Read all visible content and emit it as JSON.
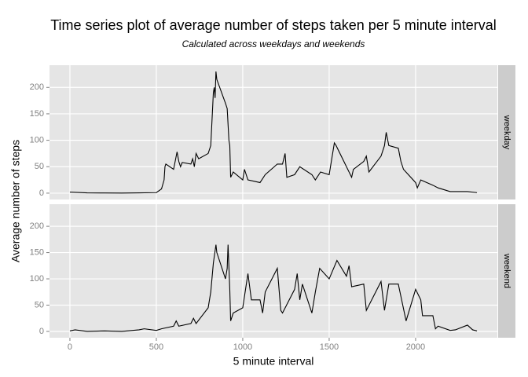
{
  "chart_data": {
    "type": "line",
    "title": "Time series plot of average number of steps taken per 5 minute interval",
    "subtitle": "Calculated across weekdays and weekends",
    "x_label": "5 minute interval",
    "y_label": "Average number of steps",
    "xlim": [
      -118,
      2473
    ],
    "xticks": [
      0,
      500,
      1000,
      1500,
      2000
    ],
    "ylim": [
      -12,
      242
    ],
    "yticks": [
      0,
      50,
      100,
      150,
      200
    ],
    "grid": true,
    "series": [
      {
        "name": "weekday",
        "color": "#000000",
        "x": [
          0,
          100,
          200,
          300,
          400,
          500,
          530,
          545,
          550,
          555,
          600,
          615,
          620,
          630,
          640,
          650,
          700,
          710,
          720,
          730,
          745,
          800,
          815,
          830,
          835,
          840,
          845,
          850,
          900,
          910,
          920,
          925,
          930,
          945,
          1000,
          1010,
          1030,
          1100,
          1130,
          1200,
          1230,
          1245,
          1255,
          1300,
          1330,
          1400,
          1420,
          1450,
          1500,
          1530,
          1540,
          1600,
          1630,
          1640,
          1700,
          1715,
          1730,
          1800,
          1820,
          1830,
          1845,
          1900,
          1915,
          1930,
          2000,
          2010,
          2030,
          2100,
          2130,
          2200,
          2300,
          2355
        ],
        "values": [
          2,
          0.5,
          0.3,
          0.2,
          0.5,
          1,
          8,
          25,
          50,
          55,
          45,
          70,
          78,
          60,
          50,
          58,
          55,
          65,
          50,
          75,
          65,
          75,
          90,
          190,
          200,
          180,
          230,
          215,
          170,
          160,
          100,
          90,
          30,
          40,
          25,
          45,
          25,
          20,
          35,
          55,
          55,
          75,
          30,
          35,
          50,
          35,
          25,
          40,
          35,
          95,
          90,
          50,
          30,
          45,
          60,
          70,
          40,
          70,
          90,
          115,
          90,
          85,
          60,
          45,
          20,
          10,
          25,
          15,
          10,
          3,
          3,
          1
        ]
      },
      {
        "name": "weekend",
        "color": "#000000",
        "x": [
          0,
          30,
          100,
          200,
          300,
          400,
          430,
          500,
          530,
          600,
          615,
          630,
          700,
          715,
          730,
          800,
          815,
          830,
          845,
          850,
          900,
          910,
          915,
          925,
          930,
          945,
          1000,
          1030,
          1050,
          1100,
          1115,
          1130,
          1200,
          1220,
          1230,
          1300,
          1315,
          1330,
          1345,
          1400,
          1420,
          1445,
          1500,
          1545,
          1600,
          1615,
          1630,
          1700,
          1715,
          1800,
          1820,
          1845,
          1900,
          1945,
          2000,
          2030,
          2040,
          2100,
          2115,
          2130,
          2200,
          2230,
          2300,
          2330,
          2355
        ],
        "values": [
          1,
          3,
          0,
          1,
          0,
          3,
          5,
          2,
          5,
          10,
          20,
          10,
          15,
          25,
          15,
          45,
          75,
          130,
          165,
          150,
          100,
          120,
          165,
          80,
          20,
          35,
          45,
          110,
          60,
          60,
          35,
          75,
          120,
          40,
          35,
          80,
          110,
          60,
          90,
          35,
          75,
          120,
          100,
          135,
          105,
          125,
          85,
          90,
          40,
          95,
          40,
          90,
          90,
          20,
          80,
          60,
          30,
          30,
          5,
          10,
          2,
          3,
          12,
          3,
          1
        ]
      }
    ]
  }
}
